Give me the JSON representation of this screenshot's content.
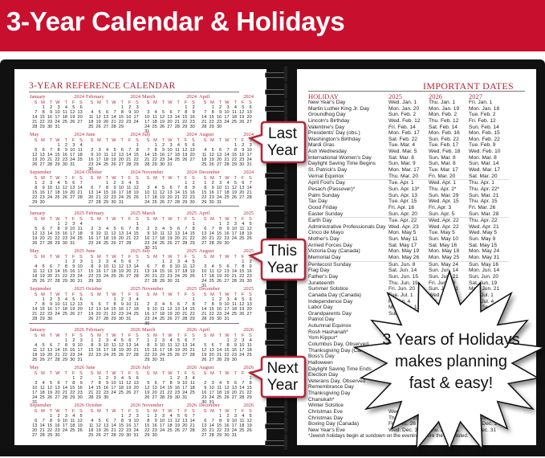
{
  "banner": {
    "title": "3-Year Calendar & Holidays",
    "color": "#c8102e"
  },
  "left_page": {
    "title": "3-YEAR REFERENCE CALENDAR",
    "years": [
      2024,
      2025,
      2026
    ],
    "months": [
      "January",
      "February",
      "March",
      "April",
      "May",
      "June",
      "July",
      "August",
      "September",
      "October",
      "November",
      "December"
    ],
    "day_letters": [
      "S",
      "M",
      "T",
      "W",
      "T",
      "F",
      "S"
    ],
    "callouts": {
      "last": "Last Year",
      "this": "This Year",
      "next": "Next Year"
    }
  },
  "right_page": {
    "title": "IMPORTANT DATES",
    "columns": [
      "HOLIDAY",
      "2025",
      "2026",
      "2027"
    ],
    "rows": [
      [
        "New Year's Day",
        "Wed. Jan. 1",
        "Thu. Jan. 1",
        "Fri. Jan. 1"
      ],
      [
        "Martin Luther King Jr. Day",
        "Mon. Jan. 20",
        "Mon. Jan. 19",
        "Mon. Jan. 18"
      ],
      [
        "Groundhog Day",
        "Sun. Feb. 2",
        "Mon. Feb. 2",
        "Tue. Feb. 2"
      ],
      [
        "Lincoln's Birthday",
        "Wed. Feb. 12",
        "Thu. Feb. 12",
        "Fri. Feb. 12"
      ],
      [
        "Valentine's Day",
        "Fri. Feb. 14",
        "Sat. Feb. 14",
        "Sun. Feb. 14"
      ],
      [
        "Presidents' Day (obs.)",
        "Mon. Feb. 17",
        "Mon. Feb. 16",
        "Mon. Feb. 15"
      ],
      [
        "Washington's Birthday",
        "Sat. Feb. 22",
        "Sun. Feb. 22",
        "Mon. Feb. 22"
      ],
      [
        "Mardi Gras",
        "Tue. Mar. 4",
        "Tue. Feb. 17",
        "Tue. Feb. 9"
      ],
      [
        "Ash Wednesday",
        "Wed. Mar. 5",
        "Wed. Feb. 18",
        "Wed. Feb. 10"
      ],
      [
        "International Women's Day",
        "Sat. Mar. 8",
        "Sun. Mar. 8",
        "Mon. Mar. 8"
      ],
      [
        "Daylight Saving Time Begins",
        "Sun. Mar. 9",
        "Sun. Mar. 8",
        "Sun. Mar. 14"
      ],
      [
        "St. Patrick's Day",
        "Mon. Mar. 17",
        "Tue. Mar. 17",
        "Wed. Mar. 17"
      ],
      [
        "Vernal Equinox",
        "Thu. Mar. 20",
        "Fri. Mar. 20",
        "Sat. Mar. 20"
      ],
      [
        "April Fool's Day",
        "Tue. Apr. 1",
        "Wed. Apr. 1",
        "Thu. Apr. 1"
      ],
      [
        "Pesach (Passover)*",
        "Sun. Apr. 13*",
        "Thu. Apr. 2*",
        "Thu. Apr. 22*"
      ],
      [
        "Palm Sunday",
        "Sun. Apr. 13",
        "Sun. Mar. 29",
        "Sun. Mar. 21"
      ],
      [
        "Tax Day",
        "Tue. Apr. 15",
        "Wed. Apr. 15",
        "Thu. Apr. 15"
      ],
      [
        "Good Friday",
        "Fri. Apr. 18",
        "Fri. Apr. 3",
        "Fri. Mar. 26"
      ],
      [
        "Easter Sunday",
        "Sun. Apr. 20",
        "Sun. Apr. 5",
        "Sun. Mar. 28"
      ],
      [
        "Earth Day",
        "Tue. Apr. 22",
        "Wed. Apr. 22",
        "Thu. Apr. 22"
      ],
      [
        "Administrative Professionals Day",
        "Wed. Apr. 23",
        "Wed. Apr. 22",
        "Wed. Apr. 21"
      ],
      [
        "Cinco de Mayo",
        "Mon. May 5",
        "Tue. May 5",
        "Wed. May 5"
      ],
      [
        "Mother's Day",
        "Sun. May 11",
        "Sun. May 10",
        "Sun. May 9"
      ],
      [
        "Armed Forces Day",
        "Sat. May 17",
        "Sat. May 16",
        "Sat. May 15"
      ],
      [
        "Victoria Day (Canada)",
        "Mon. May 19",
        "Mon. May 18",
        "Mon. May 24"
      ],
      [
        "Memorial Day",
        "Mon. May 26",
        "Mon. May 25",
        "Mon. May 31"
      ],
      [
        "Pentecost Sunday",
        "Sun. Jun. 8",
        "Sun. May 24",
        "Sun. May 16"
      ],
      [
        "Flag Day",
        "Sat. Jun. 14",
        "Sun. Jun. 14",
        "Mon. Jun. 14"
      ],
      [
        "Father's Day",
        "Sun. Jun. 15",
        "Sun. Jun. 21",
        "Sun. Jun. 20"
      ],
      [
        "Juneteenth",
        "Thu. Jun. 19",
        "Fri. Jun. 19",
        "Sat. Jun. 19"
      ],
      [
        "Summer Solstice",
        "Fri. Jun. 20",
        "Sun. Jun. 21",
        "Mon. Jun. 21"
      ],
      [
        "Canada Day (Canada)",
        "Tue. Jul. 1",
        "Wed. Jul. 1",
        "Thu. Jul. 1"
      ],
      [
        "Independence Day",
        "Fri. Jul. 4",
        "Sat. Jul. 4",
        "Sun. Jul. 4"
      ],
      [
        "Labor Day",
        "Mon. Sep. 1",
        "Mon. Sep. 7",
        "Mon. Sep. 6"
      ],
      [
        "Grandparents Day",
        "Sun. Sep. 7",
        "Sun. Sep. 13",
        "Sun. Sep. 12"
      ],
      [
        "Patriot Day",
        "",
        "",
        "Sat. Sep. 11"
      ],
      [
        "Autumnal Equinox",
        "",
        "",
        ""
      ],
      [
        "Rosh Hashanah*",
        "",
        "",
        ""
      ],
      [
        "Yom Kippur*",
        "",
        "",
        ""
      ],
      [
        "Columbus Day, Observed",
        "",
        "",
        ""
      ],
      [
        "Thanksgiving Day (Canada)",
        "",
        "",
        ""
      ],
      [
        "Boss's Day",
        "",
        "",
        ""
      ],
      [
        "Halloween",
        "",
        "",
        ""
      ],
      [
        "Daylight Saving Time Ends",
        "",
        "",
        ""
      ],
      [
        "Election Day",
        "",
        "",
        ""
      ],
      [
        "Veterans Day, Observed",
        "",
        "",
        ""
      ],
      [
        "Remembrance Day",
        "",
        "",
        ""
      ],
      [
        "Thanksgiving Day",
        "",
        "",
        ""
      ],
      [
        "Chanukah*",
        "",
        "",
        ""
      ],
      [
        "Winter Solstice",
        "",
        "",
        ""
      ],
      [
        "Christmas Eve",
        "Wed. Dec. 24",
        "",
        ""
      ],
      [
        "Christmas Day",
        "Thu. Dec. 25",
        "",
        "Sat. Dec. 25"
      ],
      [
        "Boxing Day (Canada)",
        "Fri. Dec. 26",
        "",
        "Mon. Dec. 27"
      ],
      [
        "New Year's Eve",
        "Wed. Dec. 31",
        "Thu. Dec. 31",
        "Fri. Dec. 31"
      ]
    ],
    "footnote": "*Jewish holidays begin at sundown on the evening before the date listed."
  },
  "starburst": {
    "line1": "3 Years of Holidays",
    "line2": "makes planning",
    "line3": "fast & easy!"
  },
  "colors": {
    "accent_red": "#b2283a",
    "cover": "#111111"
  }
}
